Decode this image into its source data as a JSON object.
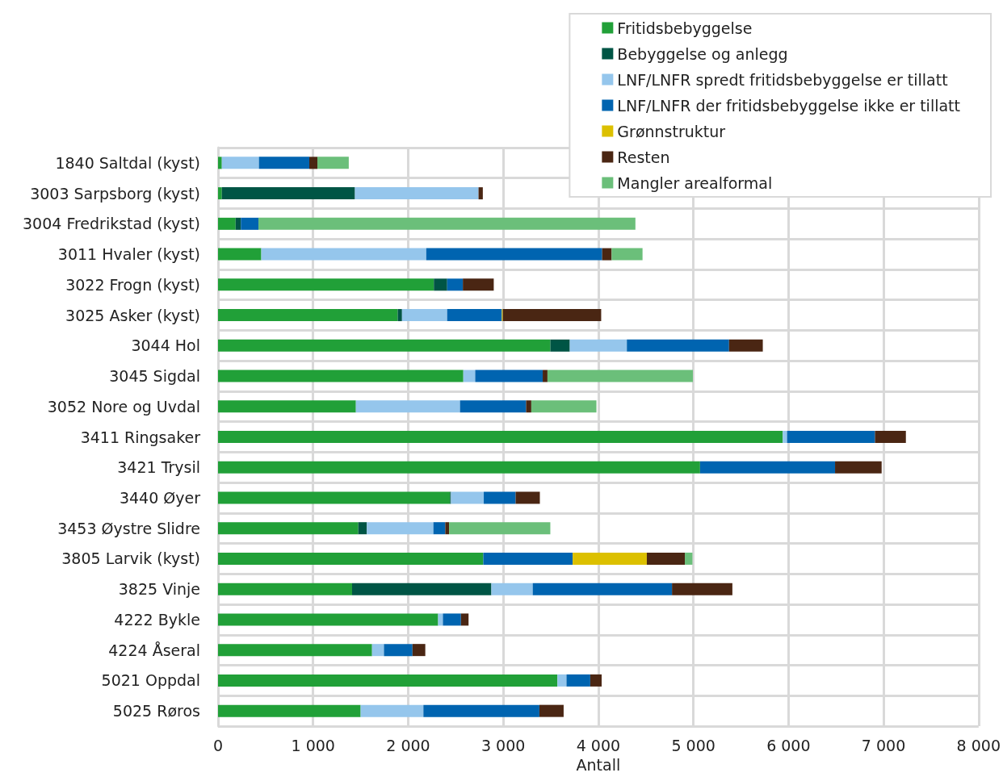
{
  "chart_data": {
    "type": "bar",
    "orientation": "horizontal",
    "stacked": true,
    "xlabel": "Antall",
    "categories": [
      "1840 Saltdal (kyst)",
      "3003 Sarpsborg (kyst)",
      "3004 Fredrikstad (kyst)",
      "3011 Hvaler (kyst)",
      "3022 Frogn (kyst)",
      "3025 Asker (kyst)",
      "3044 Hol",
      "3045 Sigdal",
      "3052 Nore og Uvdal",
      "3411 Ringsaker",
      "3421 Trysil",
      "3440 Øyer",
      "3453 Øystre Slidre",
      "3805 Larvik (kyst)",
      "3825 Vinje",
      "4222 Bykle",
      "4224 Åseral",
      "5021 Oppdal",
      "5025 Røros"
    ],
    "series": [
      {
        "name": "Fritidsbebyggelse",
        "color": "#21a038",
        "values": [
          40,
          40,
          185,
          455,
          2270,
          1890,
          3495,
          2580,
          1450,
          5940,
          5070,
          2440,
          1475,
          2790,
          1410,
          2315,
          1620,
          3570,
          1500
        ]
      },
      {
        "name": "Bebyggelse og anlegg",
        "color": "#005545",
        "values": [
          0,
          1400,
          55,
          0,
          140,
          45,
          205,
          0,
          0,
          0,
          0,
          10,
          90,
          0,
          1465,
          0,
          0,
          0,
          0
        ]
      },
      {
        "name": "LNF/LNFR spredt fritidsbebyggelse er tillatt",
        "color": "#95c6ec",
        "values": [
          390,
          1300,
          0,
          1735,
          0,
          475,
          600,
          125,
          1095,
          45,
          0,
          345,
          700,
          0,
          435,
          50,
          125,
          95,
          660
        ]
      },
      {
        "name": "LNF/LNFR der fritidsbebyggelse ikke er tillatt",
        "color": "#0064b0",
        "values": [
          530,
          0,
          185,
          1850,
          165,
          575,
          1075,
          710,
          695,
          925,
          1420,
          335,
          125,
          940,
          1465,
          190,
          300,
          250,
          1220
        ]
      },
      {
        "name": "Grønnstruktur",
        "color": "#dcc000",
        "values": [
          0,
          0,
          0,
          0,
          0,
          10,
          0,
          0,
          0,
          0,
          0,
          0,
          0,
          780,
          0,
          0,
          0,
          0,
          0
        ]
      },
      {
        "name": "Resten",
        "color": "#4a2613",
        "values": [
          85,
          45,
          0,
          100,
          325,
          1035,
          355,
          50,
          55,
          325,
          490,
          255,
          40,
          400,
          635,
          80,
          135,
          120,
          255
        ]
      },
      {
        "name": "Mangler arealformal",
        "color": "#6bbf7a",
        "values": [
          330,
          0,
          3965,
          325,
          0,
          0,
          0,
          1530,
          685,
          0,
          0,
          0,
          1065,
          80,
          0,
          0,
          0,
          0,
          0
        ]
      }
    ],
    "xlim": [
      0,
      8000
    ],
    "xticks": [
      0,
      {
        "value": 1000,
        "label": "1 000"
      },
      {
        "value": 2000,
        "label": "2 000"
      },
      {
        "value": 3000,
        "label": "3 000"
      },
      {
        "value": 4000,
        "label": "4 000"
      },
      {
        "value": 5000,
        "label": "5 000"
      },
      {
        "value": 6000,
        "label": "6 000"
      },
      {
        "value": 7000,
        "label": "7 000"
      },
      {
        "value": 8000,
        "label": "8 000"
      }
    ],
    "grid": true,
    "legend": "top right"
  }
}
